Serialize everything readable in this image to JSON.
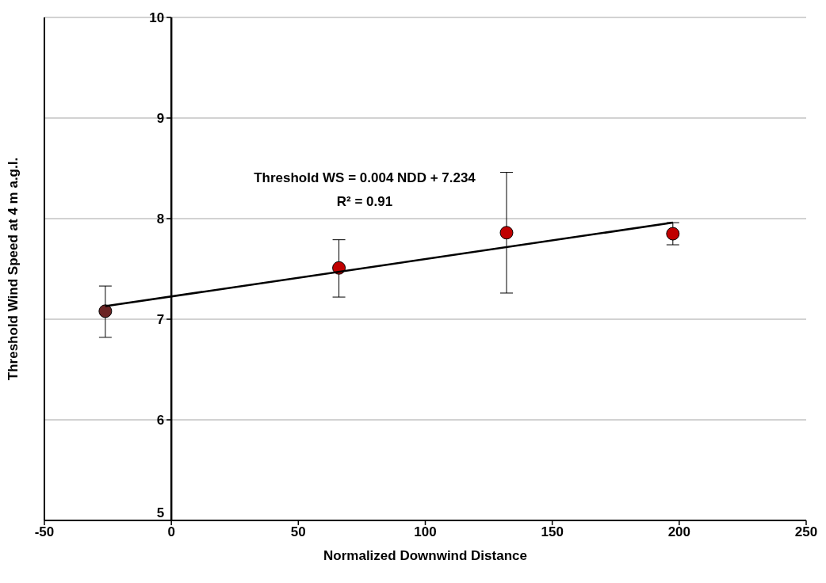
{
  "chart_data": {
    "type": "scatter",
    "xlabel": "Normalized Downwind Distance",
    "ylabel": "Threshold Wind Speed at 4 m a.g.l.",
    "annotations": [
      "Threshold WS = 0.004 NDD + 7.234",
      "R² = 0.91"
    ],
    "series": [
      {
        "x": [
          -26,
          66,
          132,
          197.5
        ],
        "values": [
          7.08,
          7.51,
          7.86,
          7.85
        ],
        "colors": [
          "#6b2424",
          "#c00000",
          "#c00000",
          "#c00000"
        ],
        "errors": [
          [
            6.82,
            7.33
          ],
          [
            7.22,
            7.79
          ],
          [
            7.26,
            8.46
          ],
          [
            7.74,
            7.96
          ]
        ]
      },
      {
        "type": "line",
        "x": [
          -26,
          197.5
        ],
        "values": [
          7.13,
          7.96
        ],
        "color": "#000000",
        "marker": "none"
      }
    ],
    "xlim": [
      -50,
      250
    ],
    "xticks": [
      -50,
      0,
      50,
      100,
      150,
      200,
      250
    ],
    "ylim": [
      5,
      10
    ],
    "yticks": [
      5,
      6,
      7,
      8,
      9,
      10
    ],
    "grid": "y",
    "marker": "circle"
  }
}
